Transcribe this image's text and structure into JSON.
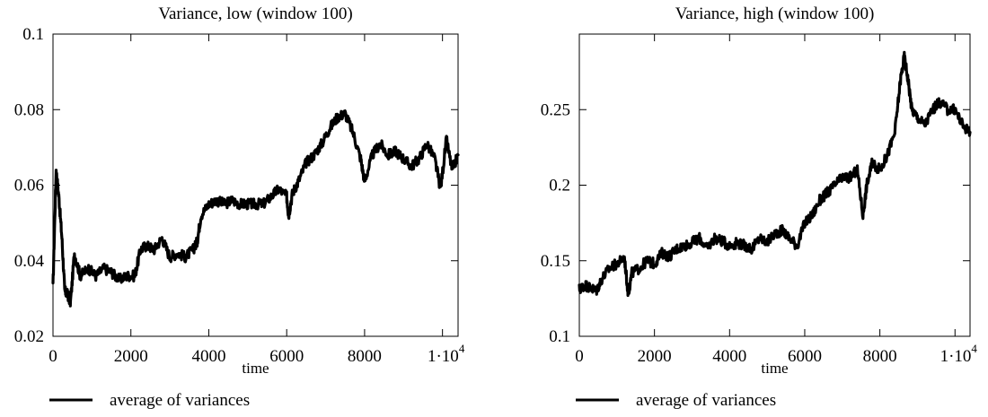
{
  "chart_data": [
    {
      "type": "line",
      "title": "Variance, low (window 100)",
      "xlabel": "time",
      "ylabel": "",
      "xlim": [
        0,
        10400
      ],
      "ylim": [
        0.02,
        0.1
      ],
      "x_ticks": [
        0,
        2000,
        4000,
        6000,
        8000,
        10000
      ],
      "x_tick_labels": [
        "0",
        "2000",
        "4000",
        "6000",
        "8000",
        "1·10^4"
      ],
      "y_ticks": [
        0.02,
        0.04,
        0.06,
        0.08,
        0.1
      ],
      "y_tick_labels": [
        "0.02",
        "0.04",
        "0.06",
        "0.08",
        "0.1"
      ],
      "grid": false,
      "legend_position": "bottom-left",
      "series": [
        {
          "name": "average of variances",
          "color": "#000000",
          "x": [
            0,
            80,
            150,
            230,
            300,
            380,
            450,
            550,
            700,
            900,
            1100,
            1300,
            1500,
            1700,
            1900,
            2100,
            2250,
            2400,
            2600,
            2800,
            3000,
            3200,
            3400,
            3600,
            3700,
            3800,
            4000,
            4200,
            4400,
            4600,
            4800,
            5000,
            5200,
            5400,
            5600,
            5800,
            6000,
            6050,
            6150,
            6300,
            6500,
            6700,
            6900,
            7100,
            7300,
            7500,
            7700,
            7900,
            8000,
            8200,
            8400,
            8600,
            8800,
            9000,
            9200,
            9400,
            9600,
            9800,
            9950,
            10100,
            10250,
            10400
          ],
          "y": [
            0.033,
            0.064,
            0.057,
            0.046,
            0.032,
            0.031,
            0.029,
            0.042,
            0.036,
            0.038,
            0.036,
            0.038,
            0.037,
            0.035,
            0.036,
            0.036,
            0.043,
            0.044,
            0.043,
            0.046,
            0.041,
            0.042,
            0.041,
            0.043,
            0.045,
            0.052,
            0.055,
            0.056,
            0.055,
            0.056,
            0.055,
            0.055,
            0.055,
            0.055,
            0.057,
            0.059,
            0.057,
            0.052,
            0.058,
            0.061,
            0.066,
            0.068,
            0.071,
            0.075,
            0.078,
            0.079,
            0.074,
            0.067,
            0.061,
            0.068,
            0.071,
            0.068,
            0.069,
            0.067,
            0.065,
            0.067,
            0.071,
            0.067,
            0.059,
            0.072,
            0.064,
            0.068
          ]
        }
      ]
    },
    {
      "type": "line",
      "title": "Variance, high (window 100)",
      "xlabel": "time",
      "ylabel": "",
      "xlim": [
        0,
        10400
      ],
      "ylim": [
        0.1,
        0.3
      ],
      "x_ticks": [
        0,
        2000,
        4000,
        6000,
        8000,
        10000
      ],
      "x_tick_labels": [
        "0",
        "2000",
        "4000",
        "6000",
        "8000",
        "1·10^4"
      ],
      "y_ticks": [
        0.1,
        0.15,
        0.2,
        0.25
      ],
      "y_tick_labels": [
        "0.1",
        "0.15",
        "0.2",
        "0.25"
      ],
      "grid": false,
      "legend_position": "bottom-left",
      "series": [
        {
          "name": "average of variances",
          "color": "#000000",
          "x": [
            0,
            150,
            300,
            450,
            600,
            800,
            1000,
            1200,
            1300,
            1400,
            1600,
            1800,
            2000,
            2200,
            2400,
            2600,
            2800,
            3000,
            3200,
            3400,
            3600,
            3800,
            4000,
            4200,
            4400,
            4600,
            4800,
            5000,
            5200,
            5400,
            5600,
            5800,
            6000,
            6200,
            6400,
            6600,
            6800,
            7000,
            7200,
            7400,
            7550,
            7650,
            7800,
            8000,
            8200,
            8400,
            8550,
            8650,
            8750,
            8850,
            9000,
            9200,
            9400,
            9600,
            9800,
            10000,
            10200,
            10400
          ],
          "y": [
            0.131,
            0.134,
            0.132,
            0.13,
            0.138,
            0.145,
            0.148,
            0.152,
            0.128,
            0.142,
            0.145,
            0.15,
            0.148,
            0.155,
            0.153,
            0.158,
            0.16,
            0.162,
            0.165,
            0.158,
            0.165,
            0.163,
            0.16,
            0.162,
            0.16,
            0.158,
            0.165,
            0.162,
            0.168,
            0.17,
            0.165,
            0.16,
            0.175,
            0.18,
            0.19,
            0.195,
            0.2,
            0.205,
            0.205,
            0.21,
            0.18,
            0.2,
            0.215,
            0.21,
            0.22,
            0.235,
            0.27,
            0.285,
            0.27,
            0.25,
            0.245,
            0.24,
            0.25,
            0.255,
            0.25,
            0.25,
            0.24,
            0.235
          ]
        }
      ]
    }
  ]
}
